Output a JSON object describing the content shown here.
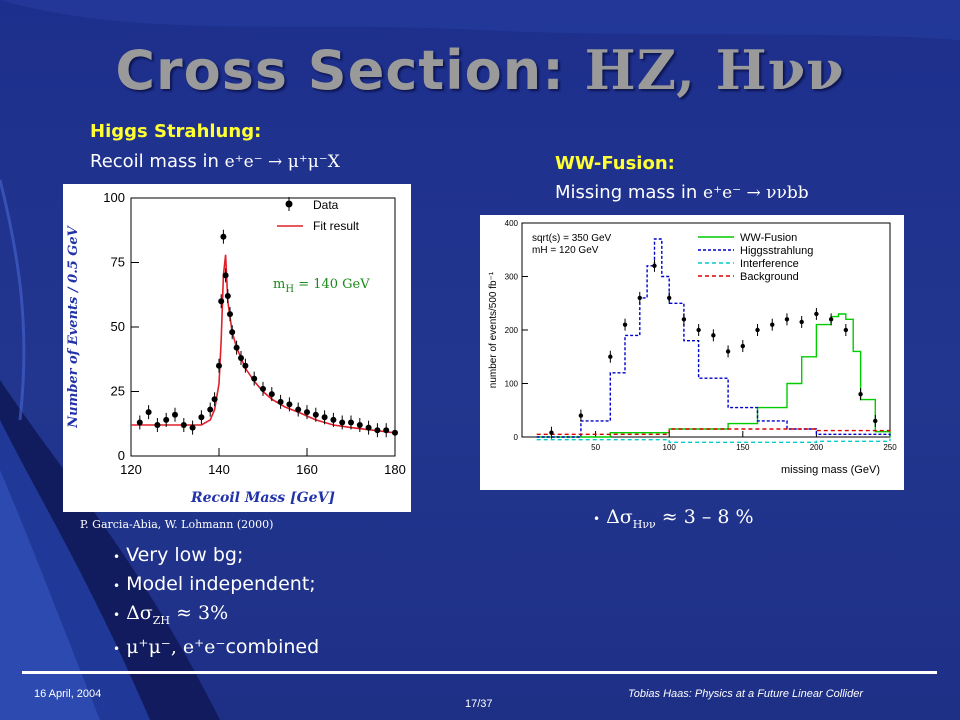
{
  "slide": {
    "title_main": "Cross Section: ",
    "title_formula": "HZ, Hνν"
  },
  "left": {
    "heading": "Higgs Strahlung:",
    "subtitle_text": "Recoil mass in ",
    "subtitle_formula": "e⁺e⁻ → μ⁺μ⁻X",
    "citation": "P. Garcia-Abia, W. Lohmann (2000)",
    "bullets": [
      "Very low bg;",
      "Model independent;",
      "Δσ_ZH ≈ 3%",
      "μ⁺μ⁻, e⁺e⁻ combined"
    ],
    "bullet3_sigma": "Δσ",
    "bullet3_sub": "ZH",
    "bullet3_rest": " ≈ 3%",
    "bullet4_math": "μ⁺μ⁻, e⁺e⁻",
    "bullet4_rest": " combined"
  },
  "right": {
    "heading": "WW-Fusion:",
    "subtitle_text": "Missing mass in ",
    "subtitle_formula": "e⁺e⁻ → ννbb",
    "bullet_sigma": "Δσ",
    "bullet_sub": "Hνν",
    "bullet_rest": " ≈ 3 – 8 %"
  },
  "footer": {
    "date": "16 April, 2004",
    "page": "17/37",
    "author": "Tobias Haas: Physics at a Future Linear Collider"
  },
  "chart_data": [
    {
      "type": "scatter",
      "title": "",
      "xlabel": "Recoil Mass  [GeV]",
      "ylabel": "Number of Events / 0.5 GeV",
      "xlim": [
        120,
        180
      ],
      "ylim": [
        0,
        100
      ],
      "xticks": [
        120,
        140,
        160,
        180
      ],
      "yticks": [
        0,
        25,
        50,
        75,
        100
      ],
      "legend": [
        "Data",
        "Fit result"
      ],
      "annotation": "m  =  140  GeV",
      "annotation_sub": "H",
      "series": [
        {
          "name": "Data",
          "x": [
            122,
            124,
            126,
            128,
            130,
            132,
            134,
            136,
            138,
            139,
            140,
            140.5,
            141,
            141.5,
            142,
            142.5,
            143,
            144,
            145,
            146,
            148,
            150,
            152,
            154,
            156,
            158,
            160,
            162,
            164,
            166,
            168,
            170,
            172,
            174,
            176,
            178,
            180
          ],
          "y": [
            13,
            17,
            12,
            14,
            16,
            12,
            11,
            15,
            18,
            22,
            35,
            60,
            85,
            70,
            62,
            55,
            48,
            42,
            38,
            35,
            30,
            26,
            24,
            21,
            20,
            18,
            17,
            16,
            15,
            14,
            13,
            13,
            12,
            11,
            10,
            10,
            9
          ]
        },
        {
          "name": "Fit result",
          "x": [
            120,
            126,
            132,
            136,
            138,
            139,
            140,
            140.5,
            141,
            141.5,
            142,
            143,
            144,
            146,
            148,
            150,
            152,
            155,
            158,
            162,
            166,
            170,
            175,
            180
          ],
          "y": [
            12,
            12,
            12,
            12,
            14,
            18,
            28,
            45,
            70,
            78,
            60,
            48,
            42,
            34,
            29,
            25,
            22,
            19,
            17,
            14,
            12,
            11,
            10,
            9
          ]
        }
      ]
    },
    {
      "type": "line",
      "title": "",
      "xlabel": "missing mass (GeV)",
      "ylabel": "number of events/500 fb⁻¹",
      "xlim": [
        0,
        250
      ],
      "ylim": [
        0,
        400
      ],
      "xticks": [
        50,
        100,
        150,
        200,
        250
      ],
      "yticks": [
        0,
        100,
        200,
        300,
        400
      ],
      "text_lines": [
        "sqrt(s) = 350 GeV",
        "mH =       120 GeV"
      ],
      "legend": [
        "WW-Fusion",
        "Higgsstrahlung",
        "Interference",
        "Background"
      ],
      "series": [
        {
          "name": "WW-Fusion",
          "color": "#00cc00",
          "x": [
            10,
            60,
            100,
            140,
            160,
            180,
            190,
            200,
            210,
            215,
            220,
            225,
            230,
            240,
            250
          ],
          "y": [
            0,
            8,
            15,
            25,
            55,
            100,
            150,
            210,
            225,
            230,
            220,
            160,
            70,
            10,
            0
          ]
        },
        {
          "name": "Higgsstrahlung",
          "color": "#0000cc",
          "x": [
            10,
            40,
            60,
            70,
            80,
            85,
            90,
            95,
            100,
            110,
            120,
            140,
            160,
            180,
            200,
            250
          ],
          "y": [
            0,
            30,
            120,
            190,
            260,
            320,
            370,
            300,
            250,
            180,
            110,
            55,
            30,
            15,
            5,
            0
          ]
        },
        {
          "name": "Interference",
          "color": "#00cccc",
          "x": [
            10,
            100,
            200,
            250
          ],
          "y": [
            -5,
            -10,
            -8,
            -3
          ]
        },
        {
          "name": "Background",
          "color": "#dd0000",
          "x": [
            10,
            100,
            200,
            250
          ],
          "y": [
            5,
            15,
            12,
            5
          ]
        },
        {
          "name": "Data",
          "x": [
            20,
            40,
            60,
            70,
            80,
            90,
            100,
            110,
            120,
            130,
            140,
            150,
            160,
            170,
            180,
            190,
            200,
            210,
            220,
            230,
            240
          ],
          "y": [
            8,
            40,
            150,
            210,
            260,
            320,
            260,
            220,
            200,
            190,
            160,
            170,
            200,
            210,
            220,
            215,
            230,
            220,
            200,
            80,
            30
          ]
        }
      ]
    }
  ]
}
